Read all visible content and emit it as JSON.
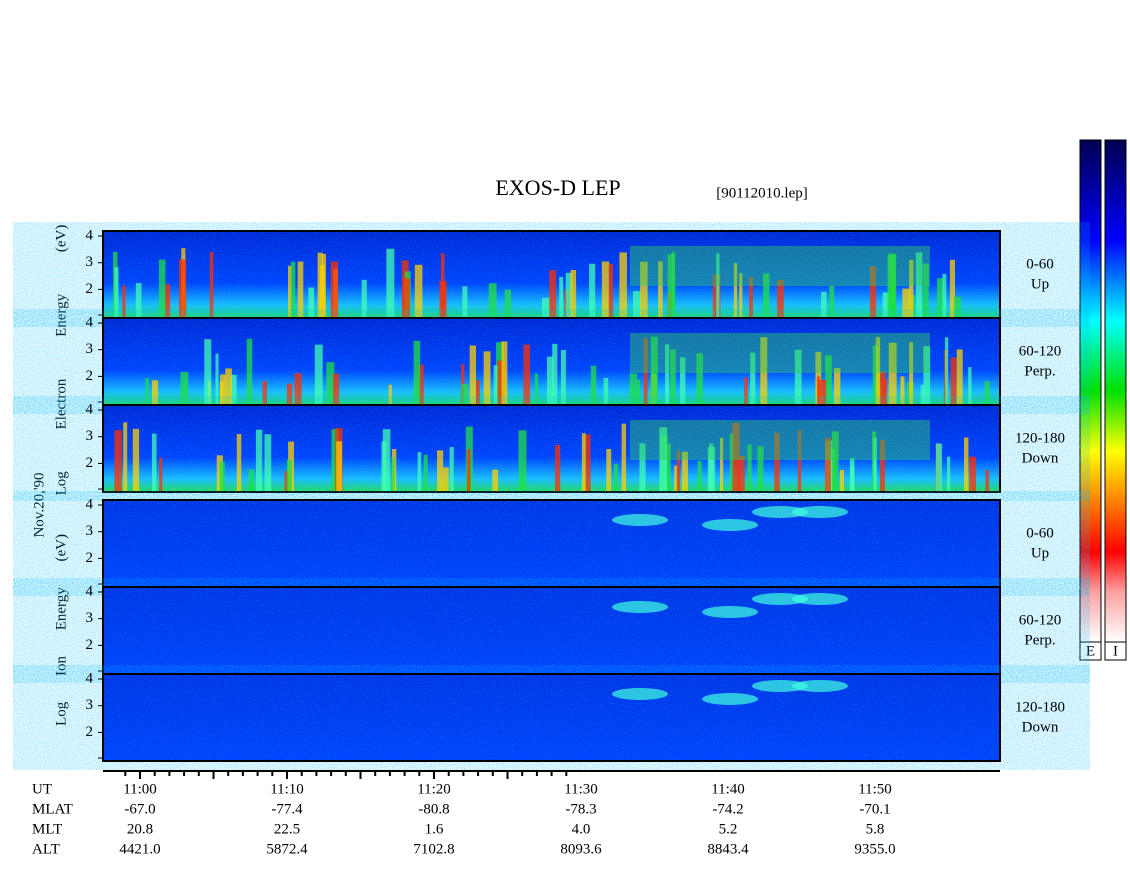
{
  "header": {
    "title": "EXOS-D LEP",
    "file": "[90112010.lep]"
  },
  "date": "Nov.20,'90",
  "electron": {
    "label": "Log Electron Energy (eV)",
    "y_ticks": [
      "4",
      "3",
      "2"
    ],
    "channels": [
      {
        "angle": "0-60",
        "direction": "Up"
      },
      {
        "angle": "60-120",
        "direction": "Perp."
      },
      {
        "angle": "120-180",
        "direction": "Down"
      }
    ]
  },
  "ion": {
    "label": "Log Ion Energy (eV)",
    "y_ticks": [
      "4",
      "3",
      "2"
    ],
    "channels": [
      {
        "angle": "0-60",
        "direction": "Up"
      },
      {
        "angle": "60-120",
        "direction": "Perp."
      },
      {
        "angle": "120-180",
        "direction": "Down"
      }
    ]
  },
  "colorbars": [
    "E",
    "I"
  ],
  "footer": {
    "rows": [
      {
        "label": "UT",
        "values": [
          "11:00",
          "11:10",
          "11:20",
          "11:30",
          "11:40",
          "11:50"
        ]
      },
      {
        "label": "MLAT",
        "values": [
          "-67.0",
          "-77.4",
          "-80.8",
          "-78.3",
          "-74.2",
          "-70.1"
        ]
      },
      {
        "label": "MLT",
        "values": [
          "20.8",
          "22.5",
          "1.6",
          "4.0",
          "5.2",
          "5.8"
        ]
      },
      {
        "label": "ALT",
        "values": [
          "4421.0",
          "5872.4",
          "7102.8",
          "8093.6",
          "8843.4",
          "9355.0"
        ]
      }
    ]
  }
}
